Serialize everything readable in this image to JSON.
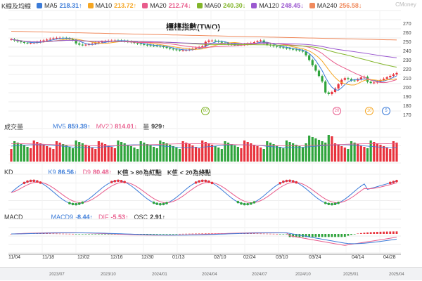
{
  "title": "櫃檯指數(TWO)",
  "watermark": "CMoney",
  "legend_kline": {
    "label": "K線及均線",
    "items": [
      {
        "label": "MA5",
        "value": "218.31↑",
        "color": "#3b7bd8"
      },
      {
        "label": "MA10",
        "value": "213.72↑",
        "color": "#f5a623"
      },
      {
        "label": "MA20",
        "value": "212.74↓",
        "color": "#e85c8c"
      },
      {
        "label": "MA60",
        "value": "240.30↓",
        "color": "#82b52a"
      },
      {
        "label": "MA120",
        "value": "248.45↓",
        "color": "#9b59d0"
      },
      {
        "label": "MA240",
        "value": "256.58↓",
        "color": "#f08a5d"
      }
    ]
  },
  "legend_volume": {
    "label": "成交量",
    "items": [
      {
        "label": "MV5",
        "value": "859.39↑",
        "color": "#3b7bd8"
      },
      {
        "label": "MV20",
        "value": "814.01↓",
        "color": "#e85c8c"
      },
      {
        "label": "量",
        "value": "929↑",
        "color": "#333333"
      }
    ]
  },
  "legend_kd": {
    "label": "KD",
    "items": [
      {
        "label": "K9",
        "value": "86.56↓",
        "color": "#3b7bd8"
      },
      {
        "label": "D9",
        "value": "80.48↑",
        "color": "#e85c8c"
      }
    ],
    "note1": "K值 > 80為紅點",
    "note2": "K值 < 20為綠點"
  },
  "legend_macd": {
    "label": "MACD",
    "items": [
      {
        "label": "MACD9",
        "value": "-8.44↑",
        "color": "#3b7bd8"
      },
      {
        "label": "DIF",
        "value": "-5.53↑",
        "color": "#e85c8c"
      },
      {
        "label": "OSC",
        "value": "2.91↑",
        "color": "#333333"
      }
    ]
  },
  "price_axis": [
    "270",
    "260",
    "250",
    "240",
    "230",
    "220",
    "210",
    "200",
    "190",
    "180",
    "170"
  ],
  "x_axis_dates": [
    "11/04",
    "11/18",
    "12/02",
    "12/16",
    "12/30",
    "01/13",
    "02/10",
    "02/24",
    "03/10",
    "03/24",
    "04/14",
    "04/28"
  ],
  "navigator_dates": [
    "2023/07",
    "2023/10",
    "2024/01",
    "2024/04",
    "2024/07",
    "2024/10",
    "2025/01",
    "2025/04"
  ],
  "markers": [
    "60",
    "20",
    "10",
    "5"
  ],
  "colors": {
    "up": "#e8323c",
    "down": "#2fa43c"
  }
}
